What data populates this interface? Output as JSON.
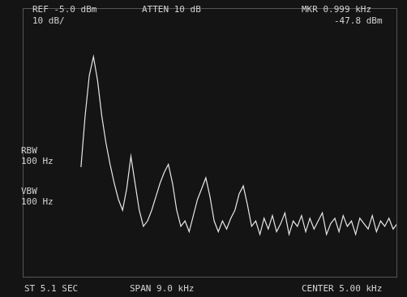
{
  "chart_data": {
    "type": "line",
    "color": "#e8e8e8",
    "grid": false,
    "tick_labels": false,
    "xlim": [
      0.5,
      9.5
    ],
    "ylim": [
      -105,
      -5
    ],
    "annotations": [
      "REF -5.0 dBm",
      "ATTEN 10 dB",
      "MKR 0.999 kHz",
      "10 dB/",
      "-47.8 dBm",
      "RBW",
      "100 Hz",
      "VBW",
      "100 Hz",
      "ST 5.1 SEC",
      "SPAN 9.0 kHz",
      "CENTER 5.00 kHz"
    ],
    "x": [
      1.9,
      2.0,
      2.1,
      2.2,
      2.3,
      2.4,
      2.5,
      2.6,
      2.7,
      2.8,
      2.9,
      3.0,
      3.1,
      3.2,
      3.3,
      3.4,
      3.5,
      3.6,
      3.7,
      3.8,
      3.9,
      4.0,
      4.1,
      4.2,
      4.3,
      4.4,
      4.5,
      4.6,
      4.7,
      4.8,
      4.9,
      5.0,
      5.1,
      5.2,
      5.3,
      5.4,
      5.5,
      5.6,
      5.7,
      5.8,
      5.9,
      6.0,
      6.1,
      6.2,
      6.3,
      6.4,
      6.5,
      6.6,
      6.7,
      6.8,
      6.9,
      7.0,
      7.1,
      7.2,
      7.3,
      7.4,
      7.5,
      7.6,
      7.7,
      7.8,
      7.9,
      8.0,
      8.1,
      8.2,
      8.3,
      8.4,
      8.5,
      8.6,
      8.7,
      8.8,
      8.9,
      9.0,
      9.1,
      9.2,
      9.3,
      9.4,
      9.5
    ],
    "values": [
      -64,
      -45,
      -30,
      -23,
      -32,
      -45,
      -55,
      -63,
      -70,
      -76,
      -80,
      -72,
      -60,
      -70,
      -80,
      -86,
      -84,
      -80,
      -75,
      -70,
      -66,
      -63,
      -70,
      -80,
      -86,
      -84,
      -88,
      -82,
      -76,
      -72,
      -68,
      -75,
      -84,
      -88,
      -84,
      -87,
      -83,
      -80,
      -74,
      -71,
      -78,
      -86,
      -84,
      -89,
      -83,
      -87,
      -82,
      -88,
      -85,
      -81,
      -89,
      -84,
      -86,
      -82,
      -88,
      -83,
      -87,
      -84,
      -81,
      -89,
      -85,
      -83,
      -88,
      -82,
      -86,
      -84,
      -89,
      -83,
      -85,
      -87,
      -82,
      -88,
      -84,
      -86,
      -83,
      -87,
      -85
    ]
  }
}
